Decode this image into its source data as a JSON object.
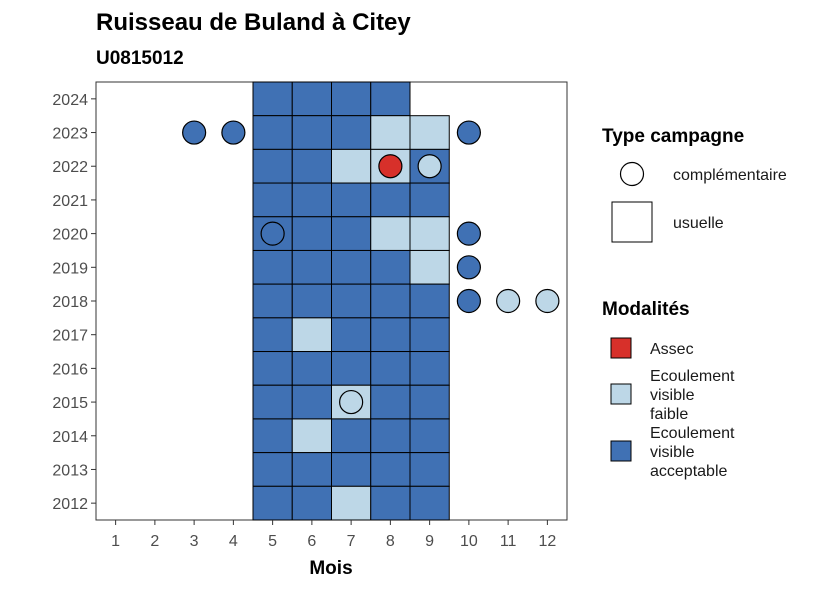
{
  "chart_data": {
    "type": "heatmap",
    "title": "Ruisseau de Buland à Citey",
    "subtitle": "U0815012",
    "xlabel": "Mois",
    "ylabel": "",
    "x_ticks": [
      1,
      2,
      3,
      4,
      5,
      6,
      7,
      8,
      9,
      10,
      11,
      12
    ],
    "y_ticks": [
      2012,
      2013,
      2014,
      2015,
      2016,
      2017,
      2018,
      2019,
      2020,
      2021,
      2022,
      2023,
      2024
    ],
    "xlim": [
      0.5,
      12.5
    ],
    "ylim": [
      2011.5,
      2024.5
    ],
    "grid": false,
    "legend_position": "right",
    "colors": {
      "Assec": "#d7302a",
      "Ecoulement visible faible": "#bdd7e7",
      "Ecoulement visible acceptable": "#4071b4"
    },
    "legend": {
      "shape_title": "Type campagne",
      "shapes": [
        {
          "label": "complémentaire",
          "shape": "circle"
        },
        {
          "label": "usuelle",
          "shape": "square"
        }
      ],
      "fill_title": "Modalités",
      "fills": [
        {
          "label": "Assec",
          "lines": [
            "Assec"
          ]
        },
        {
          "label": "Ecoulement visible faible",
          "lines": [
            "Ecoulement",
            "visible",
            "faible"
          ]
        },
        {
          "label": "Ecoulement visible acceptable",
          "lines": [
            "Ecoulement",
            "visible",
            "acceptable"
          ]
        }
      ]
    },
    "usuelle": [
      {
        "year": 2024,
        "month": 5,
        "modalite": "Ecoulement visible acceptable"
      },
      {
        "year": 2024,
        "month": 6,
        "modalite": "Ecoulement visible acceptable"
      },
      {
        "year": 2024,
        "month": 7,
        "modalite": "Ecoulement visible acceptable"
      },
      {
        "year": 2024,
        "month": 8,
        "modalite": "Ecoulement visible acceptable"
      },
      {
        "year": 2023,
        "month": 5,
        "modalite": "Ecoulement visible acceptable"
      },
      {
        "year": 2023,
        "month": 6,
        "modalite": "Ecoulement visible acceptable"
      },
      {
        "year": 2023,
        "month": 7,
        "modalite": "Ecoulement visible acceptable"
      },
      {
        "year": 2023,
        "month": 8,
        "modalite": "Ecoulement visible faible"
      },
      {
        "year": 2023,
        "month": 9,
        "modalite": "Ecoulement visible faible"
      },
      {
        "year": 2022,
        "month": 5,
        "modalite": "Ecoulement visible acceptable"
      },
      {
        "year": 2022,
        "month": 6,
        "modalite": "Ecoulement visible acceptable"
      },
      {
        "year": 2022,
        "month": 7,
        "modalite": "Ecoulement visible faible"
      },
      {
        "year": 2022,
        "month": 8,
        "modalite": "Ecoulement visible faible"
      },
      {
        "year": 2022,
        "month": 9,
        "modalite": "Ecoulement visible acceptable"
      },
      {
        "year": 2021,
        "month": 5,
        "modalite": "Ecoulement visible acceptable"
      },
      {
        "year": 2021,
        "month": 6,
        "modalite": "Ecoulement visible acceptable"
      },
      {
        "year": 2021,
        "month": 7,
        "modalite": "Ecoulement visible acceptable"
      },
      {
        "year": 2021,
        "month": 8,
        "modalite": "Ecoulement visible acceptable"
      },
      {
        "year": 2021,
        "month": 9,
        "modalite": "Ecoulement visible acceptable"
      },
      {
        "year": 2020,
        "month": 5,
        "modalite": "Ecoulement visible acceptable"
      },
      {
        "year": 2020,
        "month": 6,
        "modalite": "Ecoulement visible acceptable"
      },
      {
        "year": 2020,
        "month": 7,
        "modalite": "Ecoulement visible acceptable"
      },
      {
        "year": 2020,
        "month": 8,
        "modalite": "Ecoulement visible faible"
      },
      {
        "year": 2020,
        "month": 9,
        "modalite": "Ecoulement visible faible"
      },
      {
        "year": 2019,
        "month": 5,
        "modalite": "Ecoulement visible acceptable"
      },
      {
        "year": 2019,
        "month": 6,
        "modalite": "Ecoulement visible acceptable"
      },
      {
        "year": 2019,
        "month": 7,
        "modalite": "Ecoulement visible acceptable"
      },
      {
        "year": 2019,
        "month": 8,
        "modalite": "Ecoulement visible acceptable"
      },
      {
        "year": 2019,
        "month": 9,
        "modalite": "Ecoulement visible faible"
      },
      {
        "year": 2018,
        "month": 5,
        "modalite": "Ecoulement visible acceptable"
      },
      {
        "year": 2018,
        "month": 6,
        "modalite": "Ecoulement visible acceptable"
      },
      {
        "year": 2018,
        "month": 7,
        "modalite": "Ecoulement visible acceptable"
      },
      {
        "year": 2018,
        "month": 8,
        "modalite": "Ecoulement visible acceptable"
      },
      {
        "year": 2018,
        "month": 9,
        "modalite": "Ecoulement visible acceptable"
      },
      {
        "year": 2017,
        "month": 5,
        "modalite": "Ecoulement visible acceptable"
      },
      {
        "year": 2017,
        "month": 6,
        "modalite": "Ecoulement visible faible"
      },
      {
        "year": 2017,
        "month": 7,
        "modalite": "Ecoulement visible acceptable"
      },
      {
        "year": 2017,
        "month": 8,
        "modalite": "Ecoulement visible acceptable"
      },
      {
        "year": 2017,
        "month": 9,
        "modalite": "Ecoulement visible acceptable"
      },
      {
        "year": 2016,
        "month": 5,
        "modalite": "Ecoulement visible acceptable"
      },
      {
        "year": 2016,
        "month": 6,
        "modalite": "Ecoulement visible acceptable"
      },
      {
        "year": 2016,
        "month": 7,
        "modalite": "Ecoulement visible acceptable"
      },
      {
        "year": 2016,
        "month": 8,
        "modalite": "Ecoulement visible acceptable"
      },
      {
        "year": 2016,
        "month": 9,
        "modalite": "Ecoulement visible acceptable"
      },
      {
        "year": 2015,
        "month": 5,
        "modalite": "Ecoulement visible acceptable"
      },
      {
        "year": 2015,
        "month": 6,
        "modalite": "Ecoulement visible acceptable"
      },
      {
        "year": 2015,
        "month": 7,
        "modalite": "Ecoulement visible faible"
      },
      {
        "year": 2015,
        "month": 8,
        "modalite": "Ecoulement visible acceptable"
      },
      {
        "year": 2015,
        "month": 9,
        "modalite": "Ecoulement visible acceptable"
      },
      {
        "year": 2014,
        "month": 5,
        "modalite": "Ecoulement visible acceptable"
      },
      {
        "year": 2014,
        "month": 6,
        "modalite": "Ecoulement visible faible"
      },
      {
        "year": 2014,
        "month": 7,
        "modalite": "Ecoulement visible acceptable"
      },
      {
        "year": 2014,
        "month": 8,
        "modalite": "Ecoulement visible acceptable"
      },
      {
        "year": 2014,
        "month": 9,
        "modalite": "Ecoulement visible acceptable"
      },
      {
        "year": 2013,
        "month": 5,
        "modalite": "Ecoulement visible acceptable"
      },
      {
        "year": 2013,
        "month": 6,
        "modalite": "Ecoulement visible acceptable"
      },
      {
        "year": 2013,
        "month": 7,
        "modalite": "Ecoulement visible acceptable"
      },
      {
        "year": 2013,
        "month": 8,
        "modalite": "Ecoulement visible acceptable"
      },
      {
        "year": 2013,
        "month": 9,
        "modalite": "Ecoulement visible acceptable"
      },
      {
        "year": 2012,
        "month": 5,
        "modalite": "Ecoulement visible acceptable"
      },
      {
        "year": 2012,
        "month": 6,
        "modalite": "Ecoulement visible acceptable"
      },
      {
        "year": 2012,
        "month": 7,
        "modalite": "Ecoulement visible faible"
      },
      {
        "year": 2012,
        "month": 8,
        "modalite": "Ecoulement visible acceptable"
      },
      {
        "year": 2012,
        "month": 9,
        "modalite": "Ecoulement visible acceptable"
      }
    ],
    "complementaire": [
      {
        "year": 2023,
        "month": 3,
        "modalite": "Ecoulement visible acceptable"
      },
      {
        "year": 2023,
        "month": 4,
        "modalite": "Ecoulement visible acceptable"
      },
      {
        "year": 2023,
        "month": 10,
        "modalite": "Ecoulement visible acceptable"
      },
      {
        "year": 2022,
        "month": 8,
        "modalite": "Assec"
      },
      {
        "year": 2022,
        "month": 9,
        "modalite": "Ecoulement visible faible"
      },
      {
        "year": 2020,
        "month": 5,
        "modalite": "Ecoulement visible acceptable"
      },
      {
        "year": 2020,
        "month": 10,
        "modalite": "Ecoulement visible acceptable"
      },
      {
        "year": 2019,
        "month": 10,
        "modalite": "Ecoulement visible acceptable"
      },
      {
        "year": 2018,
        "month": 10,
        "modalite": "Ecoulement visible acceptable"
      },
      {
        "year": 2018,
        "month": 11,
        "modalite": "Ecoulement visible faible"
      },
      {
        "year": 2018,
        "month": 12,
        "modalite": "Ecoulement visible faible"
      },
      {
        "year": 2015,
        "month": 7,
        "modalite": "Ecoulement visible faible"
      }
    ]
  }
}
